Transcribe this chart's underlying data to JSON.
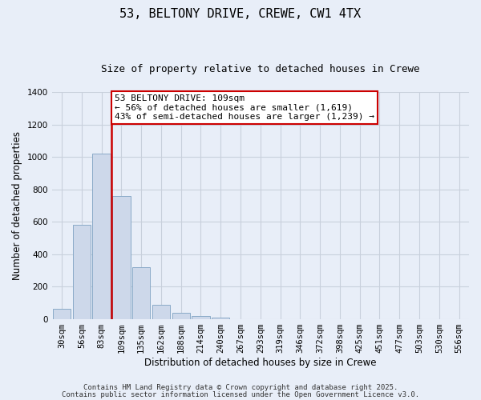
{
  "title": "53, BELTONY DRIVE, CREWE, CW1 4TX",
  "subtitle": "Size of property relative to detached houses in Crewe",
  "xlabel": "Distribution of detached houses by size in Crewe",
  "ylabel": "Number of detached properties",
  "bin_labels": [
    "30sqm",
    "56sqm",
    "83sqm",
    "109sqm",
    "135sqm",
    "162sqm",
    "188sqm",
    "214sqm",
    "240sqm",
    "267sqm",
    "293sqm",
    "319sqm",
    "346sqm",
    "372sqm",
    "398sqm",
    "425sqm",
    "451sqm",
    "477sqm",
    "503sqm",
    "530sqm",
    "556sqm"
  ],
  "bar_values": [
    65,
    580,
    1020,
    760,
    320,
    88,
    40,
    20,
    8,
    2,
    0,
    0,
    0,
    0,
    0,
    0,
    0,
    0,
    0,
    0,
    0
  ],
  "bar_color": "#cdd8ea",
  "bar_edge_color": "#8aaac8",
  "vline_color": "#cc0000",
  "annotation_text": "53 BELTONY DRIVE: 109sqm\n← 56% of detached houses are smaller (1,619)\n43% of semi-detached houses are larger (1,239) →",
  "annotation_box_color": "#ffffff",
  "annotation_box_edge": "#cc0000",
  "ylim": [
    0,
    1400
  ],
  "yticks": [
    0,
    200,
    400,
    600,
    800,
    1000,
    1200,
    1400
  ],
  "footer_line1": "Contains HM Land Registry data © Crown copyright and database right 2025.",
  "footer_line2": "Contains public sector information licensed under the Open Government Licence v3.0.",
  "background_color": "#e8eef8",
  "grid_color": "#c8d0dc",
  "title_fontsize": 11,
  "subtitle_fontsize": 9,
  "axis_label_fontsize": 8.5,
  "tick_fontsize": 7.5,
  "annotation_fontsize": 8,
  "footer_fontsize": 6.5
}
